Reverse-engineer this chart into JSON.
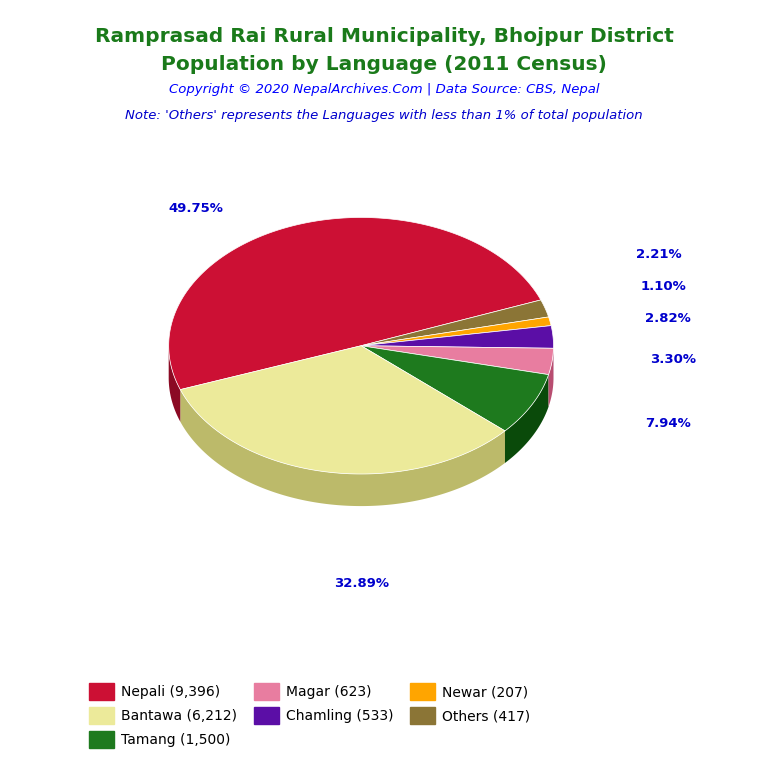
{
  "title_line1": "Ramprasad Rai Rural Municipality, Bhojpur District",
  "title_line2": "Population by Language (2011 Census)",
  "title_color": "#1a7a1a",
  "copyright_text": "Copyright © 2020 NepalArchives.Com | Data Source: CBS, Nepal",
  "copyright_color": "#0000FF",
  "note_text": "Note: 'Others' represents the Languages with less than 1% of total population",
  "note_color": "#0000CD",
  "labels": [
    "Nepali (9,396)",
    "Bantawa (6,212)",
    "Tamang (1,500)",
    "Magar (623)",
    "Chamling (533)",
    "Newar (207)",
    "Others (417)"
  ],
  "values": [
    9396,
    6212,
    1500,
    623,
    533,
    207,
    417
  ],
  "percentages": [
    "49.75%",
    "32.89%",
    "7.94%",
    "3.30%",
    "2.82%",
    "1.10%",
    "2.21%"
  ],
  "colors": [
    "#CC1034",
    "#ECEA9A",
    "#1E7A1E",
    "#E87DA0",
    "#5B0EA6",
    "#FFA500",
    "#8B7536"
  ],
  "dark_colors": [
    "#8B0A24",
    "#BCBA6A",
    "#0A4A0A",
    "#B84D70",
    "#3B006A",
    "#CC7A00",
    "#5B4506"
  ],
  "label_color": "#0000CD",
  "background_color": "#FFFFFF",
  "legend_order": [
    0,
    1,
    2,
    3,
    4,
    5,
    6
  ]
}
